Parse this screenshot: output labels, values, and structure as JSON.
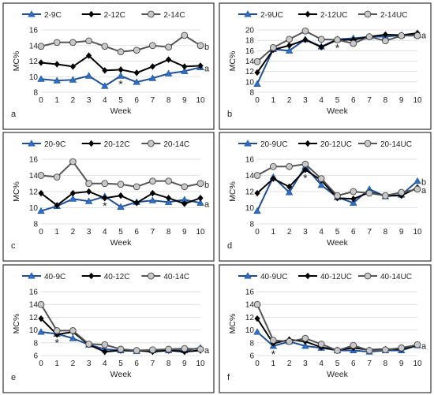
{
  "axis_label_y": "MC%",
  "axis_label_x": "Week",
  "chart_data": [
    {
      "panel": "a",
      "type": "line",
      "end_labels": [
        "b",
        "a"
      ],
      "marker_positions": [
        5
      ],
      "x": [
        0,
        1,
        2,
        3,
        4,
        5,
        6,
        7,
        8,
        9,
        10
      ],
      "ylim": [
        8,
        16
      ],
      "yticks": [
        8,
        10,
        12,
        14,
        16
      ],
      "series": [
        {
          "name": "2-9C",
          "marker": "triangle",
          "values": [
            9.7,
            9.5,
            9.6,
            10.1,
            8.8,
            10.1,
            9.3,
            9.8,
            10.4,
            10.7,
            11.2
          ]
        },
        {
          "name": "2-12C",
          "marker": "diamond",
          "values": [
            11.8,
            11.6,
            11.3,
            12.7,
            10.8,
            10.9,
            10.5,
            11.3,
            12.2,
            11.3,
            11.4
          ]
        },
        {
          "name": "2-14C",
          "marker": "circle",
          "values": [
            13.9,
            14.4,
            14.4,
            14.6,
            13.9,
            13.2,
            13.4,
            14.0,
            13.8,
            15.3,
            14.0
          ]
        }
      ]
    },
    {
      "panel": "b",
      "type": "line",
      "end_labels": [
        "a"
      ],
      "marker_positions": [
        5
      ],
      "x": [
        0,
        1,
        2,
        3,
        4,
        5,
        6,
        7,
        8,
        9,
        10
      ],
      "ylim": [
        8,
        20
      ],
      "yticks": [
        8,
        10,
        12,
        14,
        16,
        18,
        20
      ],
      "series": [
        {
          "name": "2-9UC",
          "marker": "triangle",
          "values": [
            9.6,
            16.3,
            16.0,
            18.2,
            16.8,
            18.2,
            18.4,
            18.7,
            18.7,
            19.0,
            19.0
          ]
        },
        {
          "name": "2-12UC",
          "marker": "diamond",
          "values": [
            11.8,
            16.2,
            17.0,
            18.1,
            16.7,
            18.1,
            18.1,
            18.7,
            19.1,
            19.0,
            19.4
          ]
        },
        {
          "name": "2-14UC",
          "marker": "circle",
          "values": [
            13.9,
            16.6,
            18.2,
            19.8,
            18.2,
            18.1,
            17.4,
            18.7,
            17.9,
            18.9,
            18.9
          ]
        }
      ]
    },
    {
      "panel": "c",
      "type": "line",
      "end_labels": [
        "b",
        "a"
      ],
      "marker_positions": [
        4
      ],
      "x": [
        0,
        1,
        2,
        3,
        4,
        5,
        6,
        7,
        8,
        9,
        10
      ],
      "ylim": [
        8,
        16
      ],
      "yticks": [
        8,
        10,
        12,
        14,
        16
      ],
      "series": [
        {
          "name": "20-9C",
          "marker": "triangle",
          "values": [
            9.6,
            10.2,
            11.1,
            10.8,
            11.4,
            10.1,
            10.7,
            10.9,
            10.7,
            11.0,
            10.6
          ]
        },
        {
          "name": "20-12C",
          "marker": "diamond",
          "values": [
            11.8,
            10.3,
            11.8,
            12.0,
            11.2,
            11.5,
            10.6,
            11.8,
            11.2,
            10.5,
            11.2
          ]
        },
        {
          "name": "20-14C",
          "marker": "circle",
          "values": [
            14.0,
            13.8,
            15.7,
            13.0,
            13.0,
            12.9,
            12.6,
            13.3,
            13.3,
            12.6,
            13.0
          ]
        }
      ]
    },
    {
      "panel": "d",
      "type": "line",
      "end_labels": [
        "b",
        "a"
      ],
      "marker_positions": [
        3
      ],
      "x": [
        0,
        1,
        2,
        3,
        4,
        5,
        6,
        7,
        8,
        9,
        10
      ],
      "ylim": [
        8,
        16
      ],
      "yticks": [
        8,
        10,
        12,
        14,
        16
      ],
      "series": [
        {
          "name": "20-9UC",
          "marker": "triangle",
          "values": [
            9.6,
            13.8,
            11.9,
            15.1,
            12.8,
            11.3,
            10.6,
            12.3,
            11.4,
            11.6,
            13.3
          ]
        },
        {
          "name": "20-12UC",
          "marker": "diamond",
          "values": [
            11.8,
            13.6,
            12.6,
            14.7,
            13.4,
            11.2,
            11.1,
            11.9,
            11.5,
            11.5,
            12.5
          ]
        },
        {
          "name": "20-14UC",
          "marker": "circle",
          "values": [
            14.0,
            15.1,
            15.1,
            15.4,
            13.6,
            11.5,
            12.0,
            11.8,
            11.5,
            11.9,
            12.3
          ]
        }
      ]
    },
    {
      "panel": "e",
      "type": "line",
      "end_labels": [
        "a"
      ],
      "marker_positions": [
        1
      ],
      "x": [
        0,
        1,
        2,
        3,
        4,
        5,
        6,
        7,
        8,
        9,
        10
      ],
      "ylim": [
        6,
        16
      ],
      "yticks": [
        6,
        8,
        10,
        12,
        14,
        16
      ],
      "series": [
        {
          "name": "40-9C",
          "marker": "triangle",
          "values": [
            9.7,
            9.4,
            8.7,
            7.7,
            7.0,
            6.8,
            6.7,
            6.8,
            6.8,
            6.8,
            7.2
          ]
        },
        {
          "name": "40-12C",
          "marker": "diamond",
          "values": [
            11.8,
            9.3,
            9.7,
            7.7,
            6.6,
            6.8,
            6.8,
            6.6,
            6.8,
            6.6,
            6.8
          ]
        },
        {
          "name": "40-14C",
          "marker": "circle",
          "values": [
            14.0,
            9.9,
            9.9,
            7.8,
            7.7,
            7.0,
            6.8,
            6.9,
            7.0,
            7.1,
            7.0
          ]
        }
      ]
    },
    {
      "panel": "f",
      "type": "line",
      "end_labels": [
        "a"
      ],
      "marker_positions": [
        1
      ],
      "x": [
        0,
        1,
        2,
        3,
        4,
        5,
        6,
        7,
        8,
        9,
        10
      ],
      "ylim": [
        6,
        16
      ],
      "yticks": [
        6,
        8,
        10,
        12,
        14,
        16
      ],
      "series": [
        {
          "name": "40-9UC",
          "marker": "triangle",
          "values": [
            9.7,
            7.5,
            8.2,
            7.5,
            7.2,
            6.8,
            6.8,
            6.6,
            6.8,
            6.8,
            7.6
          ]
        },
        {
          "name": "40-12UC",
          "marker": "diamond",
          "values": [
            11.8,
            7.9,
            8.5,
            8.2,
            7.3,
            6.9,
            7.2,
            6.9,
            7.0,
            7.0,
            7.6
          ]
        },
        {
          "name": "40-14UC",
          "marker": "circle",
          "values": [
            14.0,
            8.4,
            8.2,
            8.7,
            7.8,
            6.8,
            7.6,
            6.8,
            6.9,
            7.2,
            7.7
          ]
        }
      ]
    }
  ]
}
